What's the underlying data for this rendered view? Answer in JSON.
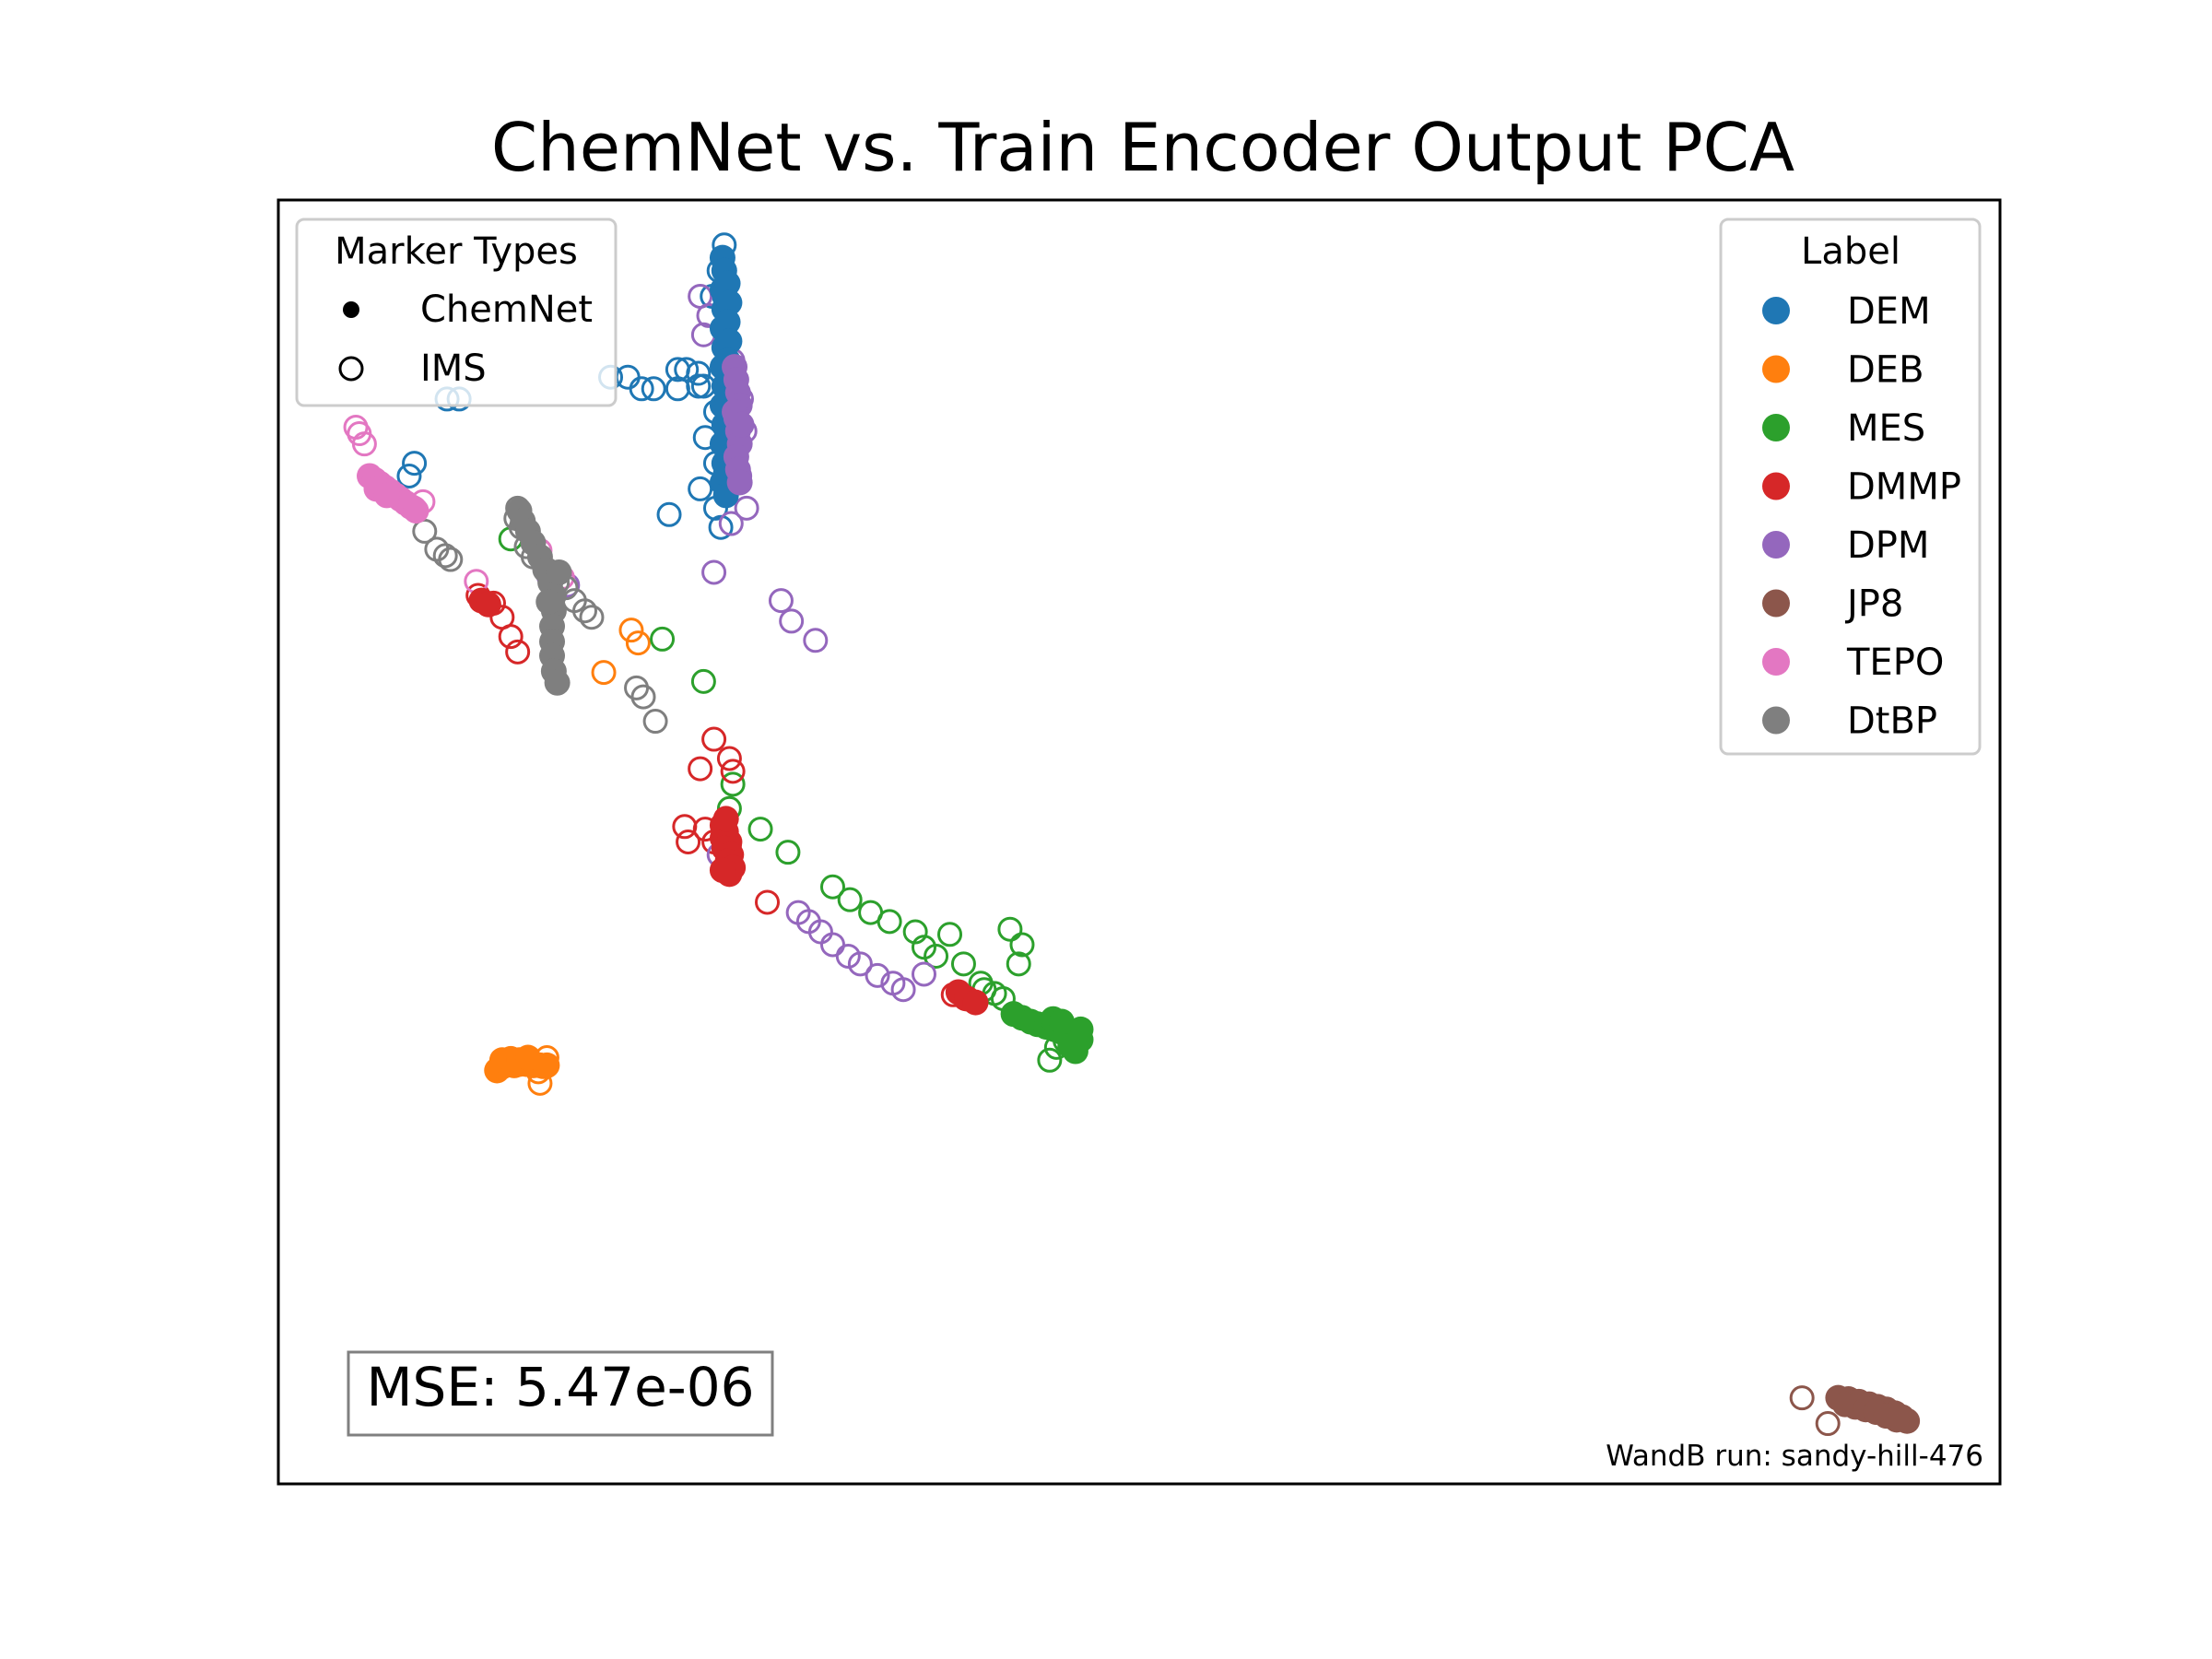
{
  "chart_data": {
    "type": "scatter",
    "title": "ChemNet vs. Train Encoder Output PCA",
    "xlabel": "",
    "ylabel": "",
    "axes_visible": false,
    "xlim": [
      0,
      1
    ],
    "ylim": [
      0,
      1
    ],
    "grid": false,
    "marker_legend": {
      "title": "Marker Types",
      "placement": "top-left",
      "entries": [
        {
          "name": "ChemNet",
          "style": "filled"
        },
        {
          "name": "IMS",
          "style": "hollow"
        }
      ]
    },
    "label_legend": {
      "title": "Label",
      "placement": "top-right"
    },
    "annotation": "MSE: 5.47e-06",
    "footnote": "WandB run: sandy-hill-476",
    "series": [
      {
        "name": "DEM",
        "color": "#1f77b4",
        "chemnet": [
          [
            0.258,
            0.955
          ],
          [
            0.259,
            0.945
          ],
          [
            0.258,
            0.93
          ],
          [
            0.259,
            0.915
          ],
          [
            0.258,
            0.9
          ],
          [
            0.259,
            0.885
          ],
          [
            0.258,
            0.87
          ],
          [
            0.259,
            0.855
          ],
          [
            0.258,
            0.84
          ],
          [
            0.259,
            0.825
          ],
          [
            0.258,
            0.81
          ],
          [
            0.259,
            0.795
          ],
          [
            0.258,
            0.78
          ],
          [
            0.26,
            0.77
          ],
          [
            0.261,
            0.935
          ],
          [
            0.262,
            0.92
          ],
          [
            0.261,
            0.905
          ],
          [
            0.262,
            0.89
          ],
          [
            0.261,
            0.875
          ],
          [
            0.262,
            0.86
          ],
          [
            0.261,
            0.845
          ],
          [
            0.262,
            0.83
          ],
          [
            0.261,
            0.815
          ],
          [
            0.262,
            0.8
          ],
          [
            0.26,
            0.787
          ]
        ],
        "ims": [
          [
            0.259,
            0.965
          ],
          [
            0.258,
            0.955
          ],
          [
            0.256,
            0.945
          ],
          [
            0.259,
            0.925
          ],
          [
            0.252,
            0.925
          ],
          [
            0.237,
            0.868
          ],
          [
            0.232,
            0.868
          ],
          [
            0.244,
            0.865
          ],
          [
            0.244,
            0.855
          ],
          [
            0.247,
            0.855
          ],
          [
            0.203,
            0.862
          ],
          [
            0.193,
            0.862
          ],
          [
            0.232,
            0.853
          ],
          [
            0.211,
            0.853
          ],
          [
            0.218,
            0.853
          ],
          [
            0.105,
            0.845
          ],
          [
            0.098,
            0.845
          ],
          [
            0.254,
            0.835
          ],
          [
            0.248,
            0.815
          ],
          [
            0.254,
            0.795
          ],
          [
            0.245,
            0.775
          ],
          [
            0.254,
            0.76
          ],
          [
            0.257,
            0.745
          ],
          [
            0.079,
            0.795
          ],
          [
            0.076,
            0.785
          ],
          [
            0.227,
            0.755
          ]
        ]
      },
      {
        "name": "DEB",
        "color": "#ff7f0e",
        "chemnet": [
          [
            0.127,
            0.322
          ],
          [
            0.13,
            0.325
          ],
          [
            0.133,
            0.327
          ],
          [
            0.137,
            0.326
          ],
          [
            0.14,
            0.327
          ],
          [
            0.144,
            0.327
          ],
          [
            0.148,
            0.326
          ],
          [
            0.152,
            0.326
          ],
          [
            0.156,
            0.326
          ],
          [
            0.13,
            0.33
          ],
          [
            0.135,
            0.331
          ],
          [
            0.14,
            0.33
          ],
          [
            0.145,
            0.332
          ]
        ],
        "ims": [
          [
            0.156,
            0.332
          ],
          [
            0.154,
            0.325
          ],
          [
            0.151,
            0.321
          ],
          [
            0.152,
            0.312
          ],
          [
            0.205,
            0.665
          ],
          [
            0.209,
            0.655
          ],
          [
            0.189,
            0.632
          ]
        ]
      },
      {
        "name": "MES",
        "color": "#2ca02c",
        "chemnet": [
          [
            0.427,
            0.366
          ],
          [
            0.432,
            0.363
          ],
          [
            0.437,
            0.36
          ],
          [
            0.441,
            0.358
          ],
          [
            0.446,
            0.356
          ],
          [
            0.451,
            0.354
          ],
          [
            0.455,
            0.352
          ],
          [
            0.459,
            0.35
          ],
          [
            0.462,
            0.348
          ],
          [
            0.466,
            0.346
          ],
          [
            0.463,
            0.337
          ],
          [
            0.46,
            0.341
          ],
          [
            0.466,
            0.354
          ],
          [
            0.45,
            0.362
          ],
          [
            0.455,
            0.36
          ]
        ],
        "ims": [
          [
            0.135,
            0.736
          ],
          [
            0.223,
            0.658
          ],
          [
            0.247,
            0.625
          ],
          [
            0.264,
            0.545
          ],
          [
            0.262,
            0.526
          ],
          [
            0.28,
            0.51
          ],
          [
            0.296,
            0.492
          ],
          [
            0.322,
            0.465
          ],
          [
            0.332,
            0.455
          ],
          [
            0.344,
            0.445
          ],
          [
            0.355,
            0.438
          ],
          [
            0.37,
            0.43
          ],
          [
            0.375,
            0.418
          ],
          [
            0.382,
            0.411
          ],
          [
            0.39,
            0.428
          ],
          [
            0.398,
            0.405
          ],
          [
            0.408,
            0.39
          ],
          [
            0.425,
            0.432
          ],
          [
            0.432,
            0.42
          ],
          [
            0.43,
            0.405
          ],
          [
            0.41,
            0.385
          ],
          [
            0.416,
            0.382
          ],
          [
            0.421,
            0.378
          ],
          [
            0.452,
            0.34
          ],
          [
            0.457,
            0.345
          ],
          [
            0.448,
            0.33
          ]
        ]
      },
      {
        "name": "DMMP",
        "color": "#d62728",
        "chemnet": [
          [
            0.258,
            0.513
          ],
          [
            0.26,
            0.508
          ],
          [
            0.258,
            0.503
          ],
          [
            0.262,
            0.5
          ],
          [
            0.259,
            0.495
          ],
          [
            0.263,
            0.49
          ],
          [
            0.261,
            0.485
          ],
          [
            0.264,
            0.48
          ],
          [
            0.262,
            0.475
          ],
          [
            0.258,
            0.478
          ],
          [
            0.26,
            0.518
          ],
          [
            0.118,
            0.688
          ],
          [
            0.122,
            0.685
          ],
          [
            0.395,
            0.383
          ],
          [
            0.4,
            0.378
          ],
          [
            0.405,
            0.375
          ]
        ],
        "ims": [
          [
            0.253,
            0.58
          ],
          [
            0.262,
            0.565
          ],
          [
            0.264,
            0.555
          ],
          [
            0.245,
            0.557
          ],
          [
            0.236,
            0.512
          ],
          [
            0.248,
            0.51
          ],
          [
            0.238,
            0.5
          ],
          [
            0.253,
            0.5
          ],
          [
            0.262,
            0.497
          ],
          [
            0.284,
            0.453
          ],
          [
            0.116,
            0.692
          ],
          [
            0.125,
            0.686
          ],
          [
            0.13,
            0.675
          ],
          [
            0.135,
            0.66
          ],
          [
            0.139,
            0.648
          ],
          [
            0.392,
            0.381
          ],
          [
            0.399,
            0.378
          ]
        ]
      },
      {
        "name": "DPM",
        "color": "#9467bd",
        "chemnet": [
          [
            0.265,
            0.87
          ],
          [
            0.266,
            0.86
          ],
          [
            0.267,
            0.85
          ],
          [
            0.268,
            0.84
          ],
          [
            0.266,
            0.83
          ],
          [
            0.267,
            0.82
          ],
          [
            0.268,
            0.81
          ],
          [
            0.266,
            0.8
          ],
          [
            0.267,
            0.79
          ],
          [
            0.268,
            0.78
          ],
          [
            0.265,
            0.835
          ],
          [
            0.269,
            0.825
          ]
        ],
        "ims": [
          [
            0.245,
            0.925
          ],
          [
            0.25,
            0.91
          ],
          [
            0.247,
            0.895
          ],
          [
            0.264,
            0.875
          ],
          [
            0.26,
            0.857
          ],
          [
            0.269,
            0.845
          ],
          [
            0.271,
            0.82
          ],
          [
            0.265,
            0.8
          ],
          [
            0.268,
            0.785
          ],
          [
            0.272,
            0.76
          ],
          [
            0.263,
            0.748
          ],
          [
            0.253,
            0.71
          ],
          [
            0.292,
            0.688
          ],
          [
            0.298,
            0.672
          ],
          [
            0.312,
            0.657
          ],
          [
            0.256,
            0.49
          ],
          [
            0.302,
            0.445
          ],
          [
            0.308,
            0.438
          ],
          [
            0.315,
            0.43
          ],
          [
            0.322,
            0.42
          ],
          [
            0.331,
            0.411
          ],
          [
            0.338,
            0.405
          ],
          [
            0.348,
            0.396
          ],
          [
            0.357,
            0.39
          ],
          [
            0.363,
            0.385
          ],
          [
            0.375,
            0.397
          ],
          [
            0.157,
            0.707
          ],
          [
            0.168,
            0.7
          ]
        ]
      },
      {
        "name": "JP8",
        "color": "#8c564b",
        "chemnet": [
          [
            0.906,
            0.067
          ],
          [
            0.912,
            0.066
          ],
          [
            0.918,
            0.064
          ],
          [
            0.924,
            0.062
          ],
          [
            0.929,
            0.06
          ],
          [
            0.934,
            0.058
          ],
          [
            0.939,
            0.055
          ],
          [
            0.943,
            0.052
          ],
          [
            0.946,
            0.049
          ],
          [
            0.91,
            0.062
          ],
          [
            0.916,
            0.06
          ],
          [
            0.922,
            0.058
          ],
          [
            0.928,
            0.056
          ],
          [
            0.934,
            0.053
          ],
          [
            0.94,
            0.05
          ]
        ],
        "ims": [
          [
            0.885,
            0.067
          ],
          [
            0.9,
            0.047
          ]
        ]
      },
      {
        "name": "TEPO",
        "color": "#e377c2",
        "chemnet": [
          [
            0.053,
            0.785
          ],
          [
            0.056,
            0.782
          ],
          [
            0.059,
            0.779
          ],
          [
            0.062,
            0.776
          ],
          [
            0.065,
            0.773
          ],
          [
            0.068,
            0.77
          ],
          [
            0.071,
            0.767
          ],
          [
            0.074,
            0.764
          ],
          [
            0.077,
            0.761
          ],
          [
            0.08,
            0.758
          ],
          [
            0.057,
            0.775
          ],
          [
            0.063,
            0.77
          ]
        ],
        "ims": [
          [
            0.045,
            0.823
          ],
          [
            0.047,
            0.818
          ],
          [
            0.05,
            0.81
          ],
          [
            0.079,
            0.76
          ],
          [
            0.084,
            0.765
          ],
          [
            0.115,
            0.703
          ],
          [
            0.152,
            0.727
          ],
          [
            0.165,
            0.706
          ]
        ]
      },
      {
        "name": "DtBP",
        "color": "#7f7f7f",
        "chemnet": [
          [
            0.14,
            0.758
          ],
          [
            0.142,
            0.75
          ],
          [
            0.145,
            0.742
          ],
          [
            0.148,
            0.733
          ],
          [
            0.152,
            0.722
          ],
          [
            0.155,
            0.712
          ],
          [
            0.158,
            0.702
          ],
          [
            0.16,
            0.692
          ],
          [
            0.16,
            0.68
          ],
          [
            0.159,
            0.668
          ],
          [
            0.159,
            0.656
          ],
          [
            0.159,
            0.645
          ],
          [
            0.16,
            0.633
          ],
          [
            0.162,
            0.624
          ],
          [
            0.157,
            0.687
          ],
          [
            0.163,
            0.71
          ]
        ],
        "ims": [
          [
            0.139,
            0.76
          ],
          [
            0.138,
            0.752
          ],
          [
            0.141,
            0.745
          ],
          [
            0.144,
            0.73
          ],
          [
            0.148,
            0.722
          ],
          [
            0.156,
            0.712
          ],
          [
            0.158,
            0.706
          ],
          [
            0.162,
            0.702
          ],
          [
            0.167,
            0.698
          ],
          [
            0.172,
            0.688
          ],
          [
            0.178,
            0.68
          ],
          [
            0.182,
            0.675
          ],
          [
            0.085,
            0.742
          ],
          [
            0.092,
            0.728
          ],
          [
            0.097,
            0.723
          ],
          [
            0.1,
            0.72
          ],
          [
            0.208,
            0.62
          ],
          [
            0.212,
            0.613
          ],
          [
            0.219,
            0.594
          ]
        ]
      }
    ]
  }
}
